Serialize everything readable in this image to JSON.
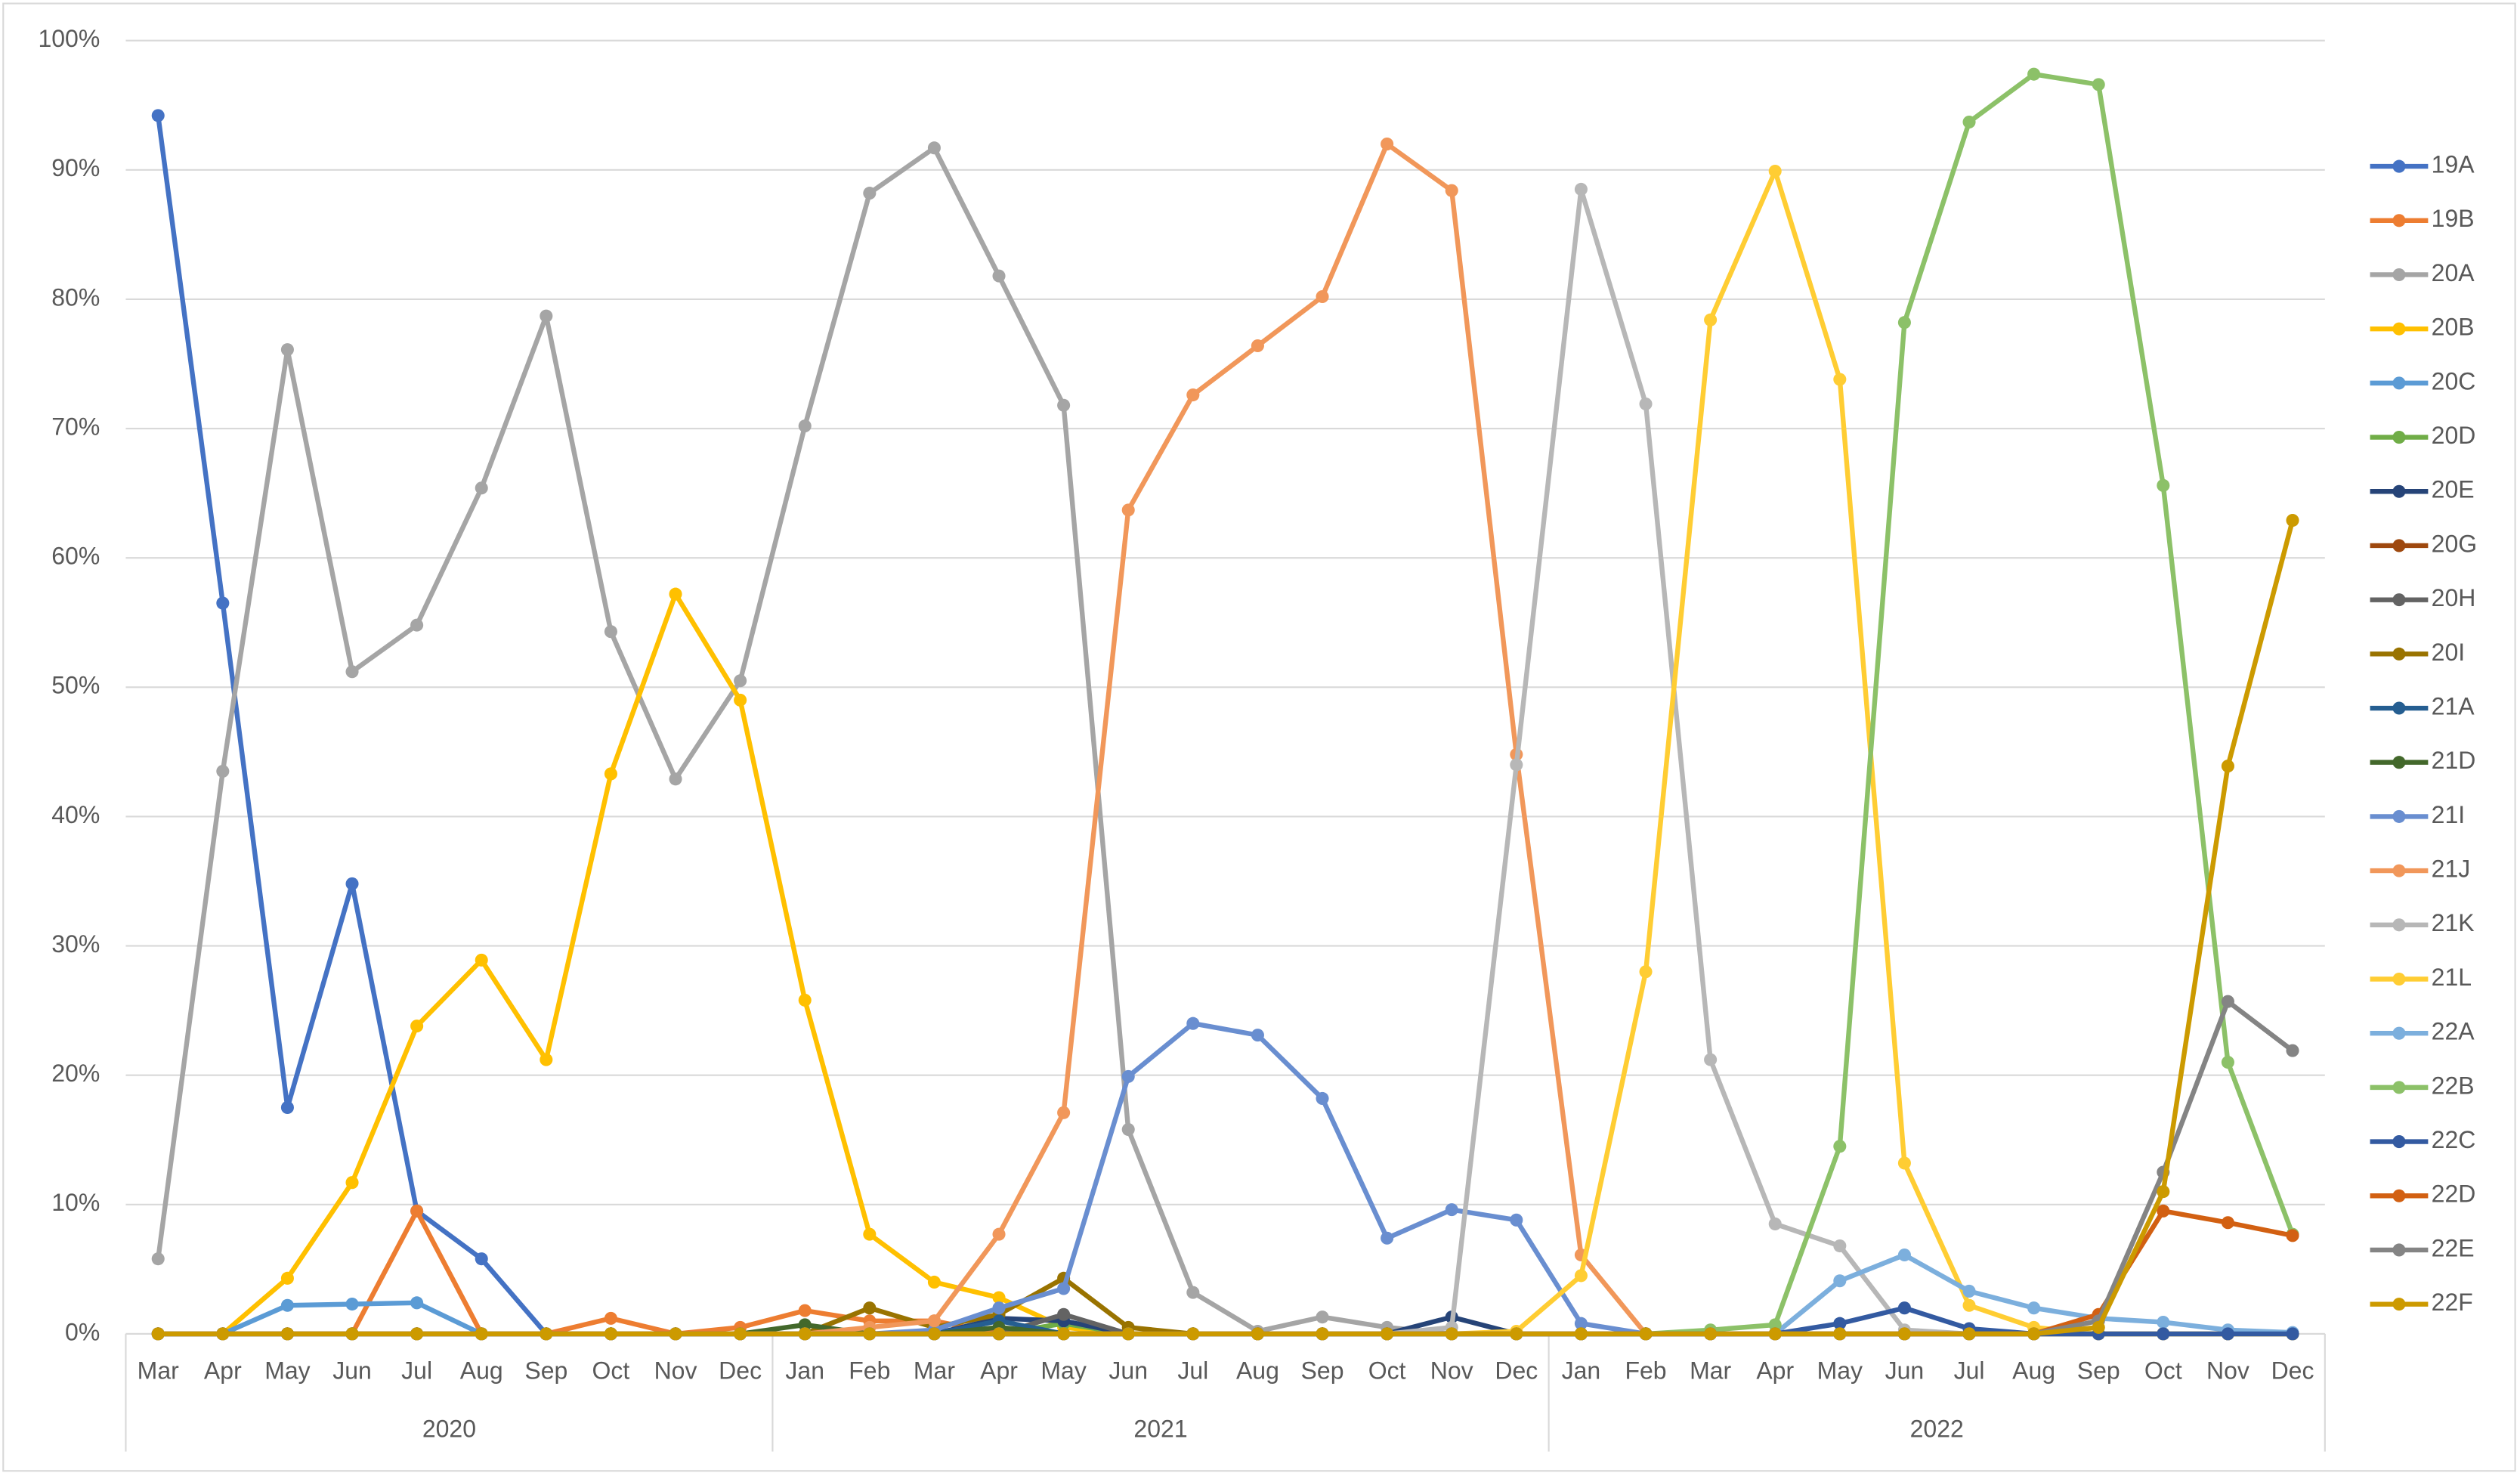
{
  "chart_data": {
    "type": "line",
    "groups": [
      {
        "label": "2020",
        "categories": [
          "Mar",
          "Apr",
          "May",
          "Jun",
          "Jul",
          "Aug",
          "Sep",
          "Oct",
          "Nov",
          "Dec"
        ]
      },
      {
        "label": "2021",
        "categories": [
          "Jan",
          "Feb",
          "Mar",
          "Apr",
          "May",
          "Jun",
          "Jul",
          "Aug",
          "Sep",
          "Oct",
          "Nov",
          "Dec"
        ]
      },
      {
        "label": "2022",
        "categories": [
          "Jan",
          "Feb",
          "Mar",
          "Apr",
          "May",
          "Jun",
          "Jul",
          "Aug",
          "Sep",
          "Oct",
          "Nov",
          "Dec"
        ]
      }
    ],
    "ylim": [
      0,
      100
    ],
    "yticks": [
      {
        "value": 0,
        "label": "0%"
      },
      {
        "value": 10,
        "label": "10%"
      },
      {
        "value": 20,
        "label": "20%"
      },
      {
        "value": 30,
        "label": "30%"
      },
      {
        "value": 40,
        "label": "40%"
      },
      {
        "value": 50,
        "label": "50%"
      },
      {
        "value": 60,
        "label": "60%"
      },
      {
        "value": 70,
        "label": "70%"
      },
      {
        "value": 80,
        "label": "80%"
      },
      {
        "value": 90,
        "label": "90%"
      },
      {
        "value": 100,
        "label": "100%"
      }
    ],
    "grid": true,
    "legend": "right",
    "series": [
      {
        "name": "19A",
        "color": "#4472c4",
        "values": [
          94.2,
          56.5,
          17.5,
          34.8,
          9.5,
          5.8,
          0,
          0,
          0,
          0,
          0,
          0,
          0,
          0,
          0,
          0,
          0,
          0,
          0,
          0,
          0,
          0,
          0,
          0,
          0,
          0,
          0,
          0,
          0,
          0,
          0,
          0,
          0,
          0
        ]
      },
      {
        "name": "19B",
        "color": "#ed7d31",
        "values": [
          0,
          0,
          0,
          0,
          9.5,
          0,
          0,
          1.2,
          0,
          0.5,
          1.8,
          1.0,
          1.0,
          0,
          0,
          0,
          0,
          0,
          0,
          0,
          0,
          0,
          0,
          0,
          0,
          0,
          0,
          0,
          0,
          0,
          0,
          0,
          0,
          0
        ]
      },
      {
        "name": "20A",
        "color": "#a5a5a5",
        "values": [
          5.8,
          43.5,
          76.1,
          51.2,
          54.8,
          65.4,
          78.7,
          54.3,
          42.9,
          50.5,
          70.2,
          88.2,
          91.7,
          81.8,
          71.8,
          15.8,
          3.2,
          0.2,
          1.3,
          0.5,
          0,
          0,
          0,
          0,
          0,
          0,
          0,
          0,
          0,
          0,
          0,
          0,
          0,
          0
        ]
      },
      {
        "name": "20B",
        "color": "#ffc000",
        "values": [
          0,
          0,
          4.3,
          11.7,
          23.8,
          28.9,
          21.2,
          43.3,
          57.2,
          49.0,
          25.8,
          7.7,
          4.0,
          2.8,
          0.5,
          0,
          0,
          0,
          0,
          0,
          0,
          0,
          0,
          0,
          0,
          0,
          0,
          0,
          0,
          0,
          0,
          0,
          0,
          0
        ]
      },
      {
        "name": "20C",
        "color": "#5b9bd5",
        "values": [
          0,
          0,
          2.2,
          2.3,
          2.4,
          0,
          0,
          0,
          0,
          0,
          0,
          0,
          0,
          0,
          0,
          0,
          0,
          0,
          0,
          0,
          0,
          0,
          0,
          0,
          0,
          0,
          0,
          0,
          0,
          0,
          0,
          0,
          0,
          0
        ]
      },
      {
        "name": "20D",
        "color": "#70ad47",
        "values": [
          0,
          0,
          0,
          0,
          0,
          0,
          0,
          0,
          0,
          0,
          0,
          0,
          0,
          0,
          0.8,
          0,
          0,
          0,
          0,
          0,
          0,
          0,
          0,
          0,
          0,
          0,
          0,
          0,
          0,
          0,
          0,
          0,
          0,
          0
        ]
      },
      {
        "name": "20E",
        "color": "#264478",
        "values": [
          0,
          0,
          0,
          0,
          0,
          0,
          0,
          0,
          0,
          0,
          0,
          0,
          0,
          1.2,
          1.0,
          0,
          0,
          0,
          0,
          0,
          1.3,
          0,
          0,
          0,
          0,
          0,
          0,
          0,
          0,
          0,
          0,
          0,
          0,
          0
        ]
      },
      {
        "name": "20G",
        "color": "#9e480e",
        "values": [
          0,
          0,
          0,
          0,
          0,
          0,
          0,
          0,
          0,
          0,
          0,
          0,
          0,
          0,
          0,
          0,
          0,
          0,
          0,
          0,
          0,
          0,
          0,
          0,
          0,
          0,
          0,
          0,
          0,
          0,
          0,
          0,
          0,
          0
        ]
      },
      {
        "name": "20H",
        "color": "#636363",
        "values": [
          0,
          0,
          0,
          0,
          0,
          0,
          0,
          0,
          0,
          0,
          0,
          0,
          0,
          0,
          1.5,
          0,
          0,
          0,
          0,
          0,
          0,
          0,
          0,
          0,
          0,
          0,
          0,
          0,
          0,
          0,
          0,
          0,
          0,
          0
        ]
      },
      {
        "name": "20I",
        "color": "#997300",
        "values": [
          0,
          0,
          0,
          0,
          0,
          0,
          0,
          0,
          0,
          0,
          0,
          2.0,
          0.5,
          1.5,
          4.3,
          0.5,
          0,
          0,
          0,
          0,
          0,
          0,
          0,
          0,
          0,
          0,
          0,
          0,
          0,
          0,
          0,
          0,
          0,
          0
        ]
      },
      {
        "name": "21A",
        "color": "#255e91",
        "values": [
          0,
          0,
          0,
          0,
          0,
          0,
          0,
          0,
          0,
          0,
          0,
          0,
          0,
          1.0,
          0,
          0,
          0,
          0,
          0,
          0,
          0,
          0,
          0,
          0,
          0,
          0,
          0,
          0,
          0,
          0,
          0,
          0,
          0,
          0
        ]
      },
      {
        "name": "21D",
        "color": "#43682b",
        "values": [
          0,
          0,
          0,
          0,
          0,
          0,
          0,
          0,
          0,
          0,
          0.7,
          0,
          0,
          0.5,
          0,
          0,
          0,
          0,
          0,
          0,
          0,
          0,
          0,
          0,
          0,
          0,
          0,
          0,
          0,
          0,
          0,
          0,
          0,
          0
        ]
      },
      {
        "name": "21I",
        "color": "#698ed0",
        "values": [
          0,
          0,
          0,
          0,
          0,
          0,
          0,
          0,
          0,
          0,
          0,
          0,
          0.3,
          2.0,
          3.5,
          19.9,
          24.0,
          23.1,
          18.2,
          7.4,
          9.6,
          8.8,
          0.8,
          0,
          0,
          0,
          0,
          0,
          0,
          0,
          0,
          0,
          0,
          0
        ]
      },
      {
        "name": "21J",
        "color": "#f1975a",
        "values": [
          0,
          0,
          0,
          0,
          0,
          0,
          0,
          0,
          0,
          0,
          0,
          0.5,
          1.0,
          7.7,
          17.1,
          63.7,
          72.6,
          76.4,
          80.2,
          92.0,
          88.4,
          44.8,
          6.1,
          0,
          0,
          0,
          0,
          0,
          0,
          0,
          0,
          0,
          0,
          0
        ]
      },
      {
        "name": "21K",
        "color": "#b7b7b7",
        "values": [
          0,
          0,
          0,
          0,
          0,
          0,
          0,
          0,
          0,
          0,
          0,
          0,
          0,
          0,
          0,
          0,
          0,
          0,
          0,
          0,
          0.5,
          44.0,
          88.5,
          71.9,
          21.2,
          8.5,
          6.8,
          0.3,
          0,
          0,
          0,
          0,
          0,
          0
        ]
      },
      {
        "name": "21L",
        "color": "#ffcd33",
        "values": [
          0,
          0,
          0,
          0,
          0,
          0,
          0,
          0,
          0,
          0,
          0,
          0,
          0,
          0,
          0,
          0,
          0,
          0,
          0,
          0,
          0,
          0.2,
          4.5,
          28.0,
          78.4,
          89.9,
          73.8,
          13.2,
          2.2,
          0.5,
          0,
          0,
          0,
          0
        ]
      },
      {
        "name": "22A",
        "color": "#7cafdd",
        "values": [
          0,
          0,
          0,
          0,
          0,
          0,
          0,
          0,
          0,
          0,
          0,
          0,
          0,
          0,
          0,
          0,
          0,
          0,
          0,
          0,
          0,
          0,
          0,
          0,
          0,
          0,
          4.1,
          6.1,
          3.3,
          2.0,
          1.2,
          0.9,
          0.3,
          0.1
        ]
      },
      {
        "name": "22B",
        "color": "#8cc168",
        "values": [
          0,
          0,
          0,
          0,
          0,
          0,
          0,
          0,
          0,
          0,
          0,
          0,
          0,
          0,
          0,
          0,
          0,
          0,
          0,
          0,
          0,
          0,
          0,
          0,
          0.3,
          0.7,
          14.5,
          78.2,
          93.7,
          97.4,
          96.6,
          65.6,
          21.0,
          7.7
        ]
      },
      {
        "name": "22C",
        "color": "#335aa1",
        "values": [
          0,
          0,
          0,
          0,
          0,
          0,
          0,
          0,
          0,
          0,
          0,
          0,
          0,
          0,
          0,
          0,
          0,
          0,
          0,
          0,
          0,
          0,
          0,
          0,
          0,
          0,
          0.8,
          2.0,
          0.4,
          0,
          0,
          0,
          0,
          0
        ]
      },
      {
        "name": "22D",
        "color": "#d26012",
        "values": [
          0,
          0,
          0,
          0,
          0,
          0,
          0,
          0,
          0,
          0,
          0,
          0,
          0,
          0,
          0,
          0,
          0,
          0,
          0,
          0,
          0,
          0,
          0,
          0,
          0,
          0,
          0,
          0,
          0,
          0,
          1.5,
          9.5,
          8.6,
          7.6
        ]
      },
      {
        "name": "22E",
        "color": "#848484",
        "values": [
          0,
          0,
          0,
          0,
          0,
          0,
          0,
          0,
          0,
          0,
          0,
          0,
          0,
          0,
          0,
          0,
          0,
          0,
          0,
          0,
          0,
          0,
          0,
          0,
          0,
          0,
          0,
          0,
          0,
          0,
          1.0,
          12.5,
          25.7,
          21.9
        ]
      },
      {
        "name": "22F",
        "color": "#cc9a00",
        "values": [
          0,
          0,
          0,
          0,
          0,
          0,
          0,
          0,
          0,
          0,
          0,
          0,
          0,
          0,
          0,
          0,
          0,
          0,
          0,
          0,
          0,
          0,
          0,
          0,
          0,
          0,
          0,
          0,
          0,
          0,
          0.5,
          11.0,
          43.9,
          62.9
        ]
      }
    ]
  }
}
